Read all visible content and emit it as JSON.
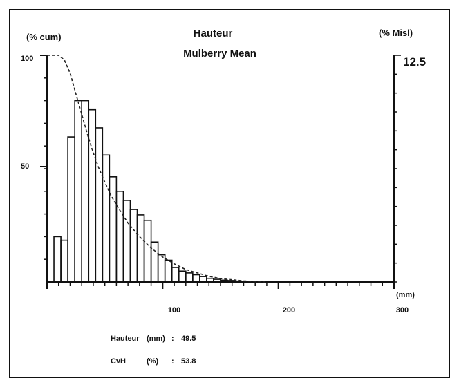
{
  "chart_data": {
    "type": "bar",
    "title": "Hauteur",
    "subtitle": "Mulberry Mean",
    "xlabel": "(mm)",
    "ylabel_left": "(% cum)",
    "ylabel_right": "(% Misl)",
    "x_ticks": [
      "100",
      "200",
      "300"
    ],
    "y_left_ticks": [
      "100",
      "50"
    ],
    "y_right_max_label": "12.5",
    "xlim": [
      0,
      300
    ],
    "ylim_left": [
      0,
      100
    ],
    "ylim_right": [
      0,
      12.5
    ],
    "histogram": {
      "name": "% Misl",
      "bin_width": 6,
      "bin_starts": [
        6,
        12,
        18,
        24,
        30,
        36,
        42,
        48,
        54,
        60,
        66,
        72,
        78,
        84,
        90,
        96,
        102,
        108,
        114,
        120,
        126,
        132,
        138,
        144,
        150,
        156,
        162,
        168,
        174,
        180
      ],
      "values": [
        2.5,
        2.3,
        8.0,
        10.0,
        10.0,
        9.5,
        8.5,
        7.0,
        5.8,
        5.0,
        4.5,
        4.0,
        3.7,
        3.4,
        2.2,
        1.5,
        1.2,
        0.8,
        0.6,
        0.5,
        0.4,
        0.3,
        0.2,
        0.15,
        0.1,
        0.08,
        0.05,
        0.04,
        0.03,
        0.02
      ]
    },
    "cumulative_curve": {
      "name": "% cum",
      "x": [
        0,
        10,
        15,
        20,
        25,
        30,
        35,
        40,
        45,
        50,
        55,
        60,
        65,
        70,
        75,
        80,
        90,
        100,
        110,
        120,
        130,
        140,
        150,
        160,
        170,
        180,
        190
      ],
      "y": [
        100,
        100,
        98,
        92,
        83,
        74,
        65,
        57,
        50,
        44,
        38.5,
        34,
        30,
        26,
        23,
        20,
        15,
        11,
        8,
        5.5,
        4,
        2.5,
        1.5,
        1,
        0.5,
        0.2,
        0
      ]
    },
    "stats": [
      {
        "label": "Hauteur",
        "unit": "(mm)",
        "sep": ":",
        "value": "49.5"
      },
      {
        "label": "CvH",
        "unit": "(%)",
        "sep": ":",
        "value": "53.8"
      }
    ]
  }
}
